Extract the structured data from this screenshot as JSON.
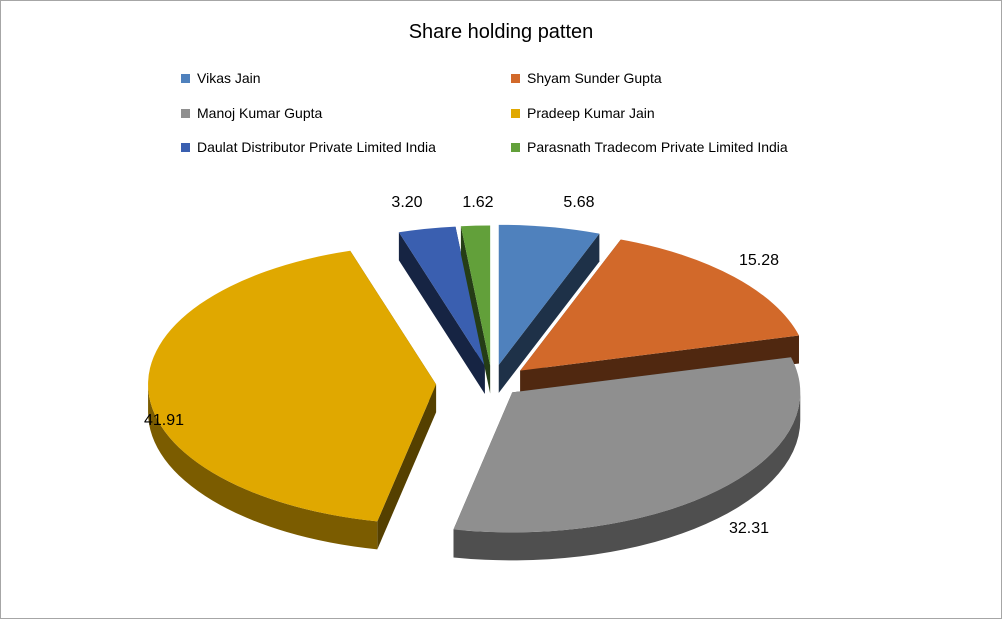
{
  "chart_data": {
    "type": "pie",
    "title": "Share holding patten",
    "legend_position": "top",
    "three_d": true,
    "exploded": true,
    "series": [
      {
        "name": "Vikas Jain",
        "value": 5.68,
        "label": "5.68",
        "color": "#4f81bd"
      },
      {
        "name": "Shyam Sunder  Gupta",
        "value": 15.28,
        "label": "15.28",
        "color": "#d2692a"
      },
      {
        "name": "Manoj Kumar Gupta",
        "value": 32.31,
        "label": "32.31",
        "color": "#8f8f8f"
      },
      {
        "name": "Pradeep  Kumar Jain",
        "value": 41.91,
        "label": "41.91",
        "color": "#e0a800"
      },
      {
        "name": "Daulat Distributor  Private  Limited India",
        "value": 3.2,
        "label": "3.20",
        "color": "#3a5fb0"
      },
      {
        "name": "Parasnath Tradecom Private  Limited India",
        "value": 1.62,
        "label": "1.62",
        "color": "#62a03a"
      }
    ]
  }
}
